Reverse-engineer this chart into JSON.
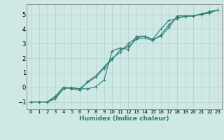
{
  "xlabel": "Humidex (Indice chaleur)",
  "ylabel": "",
  "xlim": [
    -0.5,
    23.5
  ],
  "ylim": [
    -1.5,
    5.7
  ],
  "yticks": [
    -1,
    0,
    1,
    2,
    3,
    4,
    5
  ],
  "xticks": [
    0,
    1,
    2,
    3,
    4,
    5,
    6,
    7,
    8,
    9,
    10,
    11,
    12,
    13,
    14,
    15,
    16,
    17,
    18,
    19,
    20,
    21,
    22,
    23
  ],
  "background_color": "#cde8e5",
  "grid_color": "#b8d4d0",
  "line_color": "#2e7d6e",
  "series1": [
    -1.0,
    -1.0,
    -1.0,
    -0.8,
    -0.1,
    0.0,
    -0.1,
    -0.1,
    0.05,
    0.5,
    2.5,
    2.7,
    2.6,
    3.5,
    3.5,
    3.3,
    4.0,
    4.6,
    4.7,
    4.9,
    4.9,
    5.0,
    5.2,
    5.3
  ],
  "series2": [
    -1.0,
    -1.0,
    -1.0,
    -0.7,
    0.0,
    -0.1,
    -0.2,
    0.4,
    0.8,
    1.4,
    2.0,
    2.4,
    3.0,
    3.4,
    3.5,
    3.3,
    3.5,
    4.1,
    4.9,
    4.9,
    4.9,
    5.0,
    5.1,
    5.3
  ],
  "series3": [
    -1.0,
    -1.0,
    -1.0,
    -0.6,
    0.0,
    -0.05,
    -0.1,
    0.35,
    0.7,
    1.3,
    1.9,
    2.6,
    2.8,
    3.3,
    3.4,
    3.2,
    3.6,
    4.3,
    4.8,
    4.85,
    4.9,
    5.05,
    5.15,
    5.3
  ]
}
